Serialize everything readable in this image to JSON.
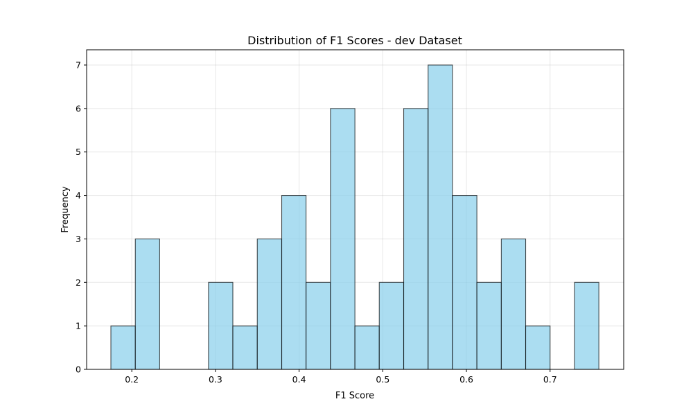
{
  "chart_data": {
    "type": "bar",
    "title": "Distribution of F1 Scores - dev Dataset",
    "xlabel": "F1 Score",
    "ylabel": "Frequency",
    "bin_edges": [
      0.175,
      0.2042,
      0.2333,
      0.2625,
      0.2917,
      0.3208,
      0.35,
      0.3792,
      0.4083,
      0.4375,
      0.4667,
      0.4958,
      0.525,
      0.5542,
      0.5833,
      0.6125,
      0.6417,
      0.6708,
      0.7,
      0.7292,
      0.7583
    ],
    "values": [
      1,
      3,
      0,
      0,
      2,
      1,
      3,
      4,
      2,
      6,
      1,
      2,
      6,
      7,
      4,
      2,
      3,
      1,
      0,
      2
    ],
    "xlim": [
      0.146,
      0.788
    ],
    "ylim": [
      0,
      7.35
    ],
    "xticks": [
      0.2,
      0.3,
      0.4,
      0.5,
      0.6,
      0.7
    ],
    "xtick_labels": [
      "0.2",
      "0.3",
      "0.4",
      "0.5",
      "0.6",
      "0.7"
    ],
    "yticks": [
      0,
      1,
      2,
      3,
      4,
      5,
      6,
      7
    ],
    "ytick_labels": [
      "0",
      "1",
      "2",
      "3",
      "4",
      "5",
      "6",
      "7"
    ],
    "grid": true,
    "bar_color": "#87ceeb",
    "edge_color": "#000000"
  }
}
